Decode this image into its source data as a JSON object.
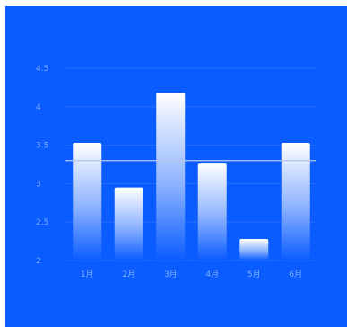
{
  "colors": {
    "background": "#0a5cff",
    "gridline": "#2a6cff",
    "tick_text": "#7fb0ff",
    "bar_top": "#ffffff",
    "bar_bottom": "#0a5cff",
    "reference_line": "#b8c8e8"
  },
  "chart_data": {
    "type": "bar",
    "categories": [
      "1月",
      "2月",
      "3月",
      "4月",
      "5月",
      "6月"
    ],
    "series": [
      {
        "values": [
          3.53,
          2.95,
          4.18,
          3.26,
          2.28,
          3.53
        ]
      }
    ],
    "reference_line": {
      "value": 3.3
    },
    "ylim": [
      2,
      4.5
    ],
    "yticks": [
      2,
      2.5,
      3,
      3.5,
      4,
      4.5
    ],
    "ytick_labels": [
      "2",
      "2.5",
      "3",
      "3.5",
      "4",
      "4.5"
    ],
    "grid": true,
    "legend": "none",
    "title": "",
    "xlabel": "",
    "ylabel": ""
  }
}
